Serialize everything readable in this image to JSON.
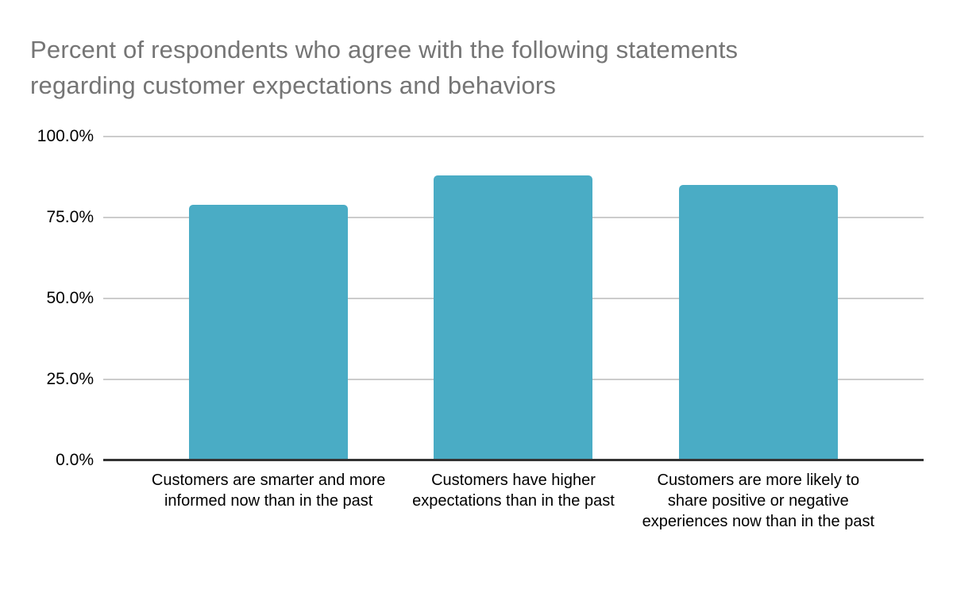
{
  "page": {
    "background": "#ffffff"
  },
  "chart_data": {
    "type": "bar",
    "title": "Percent of respondents who agree with the following statements regarding customer expectations and behaviors",
    "title_lines": [
      "Percent of respondents who agree with the following statements",
      "regarding customer expectations and behaviors"
    ],
    "categories": [
      "Customers are smarter and more informed now than in the past",
      "Customers have higher expectations than in the past",
      "Customers are more likely to share positive or negative experiences now than in the past"
    ],
    "values": [
      79,
      88,
      85
    ],
    "value_unit": "percent",
    "xlabel": "",
    "ylabel": "",
    "ylim": [
      0,
      100
    ],
    "y_ticks": [
      {
        "label": "0.0%",
        "value": 0
      },
      {
        "label": "25.0%",
        "value": 25
      },
      {
        "label": "50.0%",
        "value": 50
      },
      {
        "label": "75.0%",
        "value": 75
      },
      {
        "label": "100.0%",
        "value": 100
      }
    ],
    "grid": "horizontal",
    "legend_position": "none",
    "colors": {
      "bar": "#4aacc5",
      "grid": "#cccccc",
      "axis": "#333333",
      "title": "#757575",
      "tick_text": "#000000",
      "category_text": "#000000",
      "background": "#ffffff"
    }
  }
}
